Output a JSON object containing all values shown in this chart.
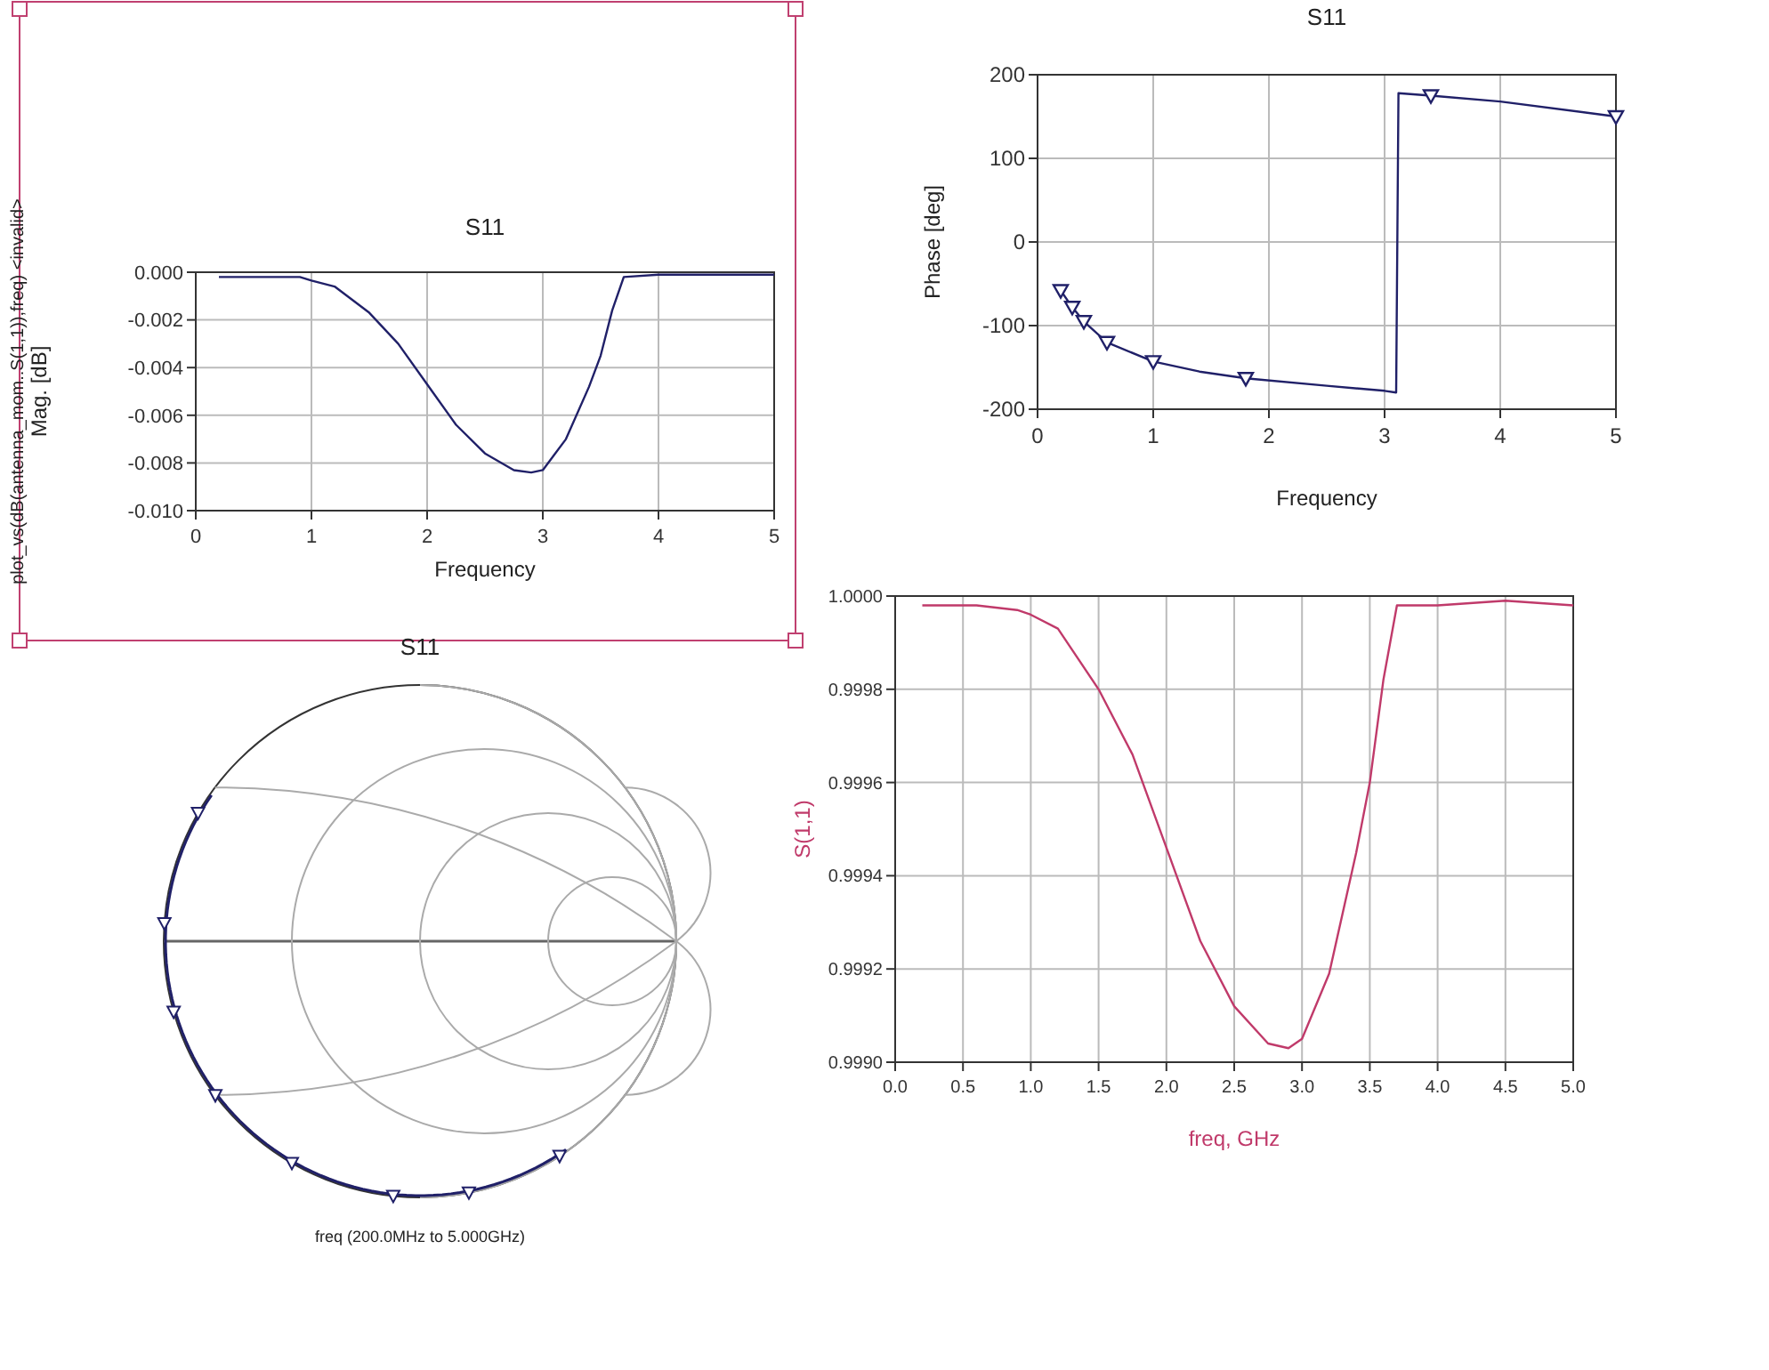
{
  "chart_data": [
    {
      "type": "line",
      "title": "S11",
      "xlabel": "Frequency",
      "ylabel": "Mag. [dB]",
      "annotations": [
        "plot_vs(dB(antenna_mom..S(1,1)),freq) <invalid>"
      ],
      "xlim": [
        0,
        5
      ],
      "ylim": [
        -0.01,
        0
      ],
      "xticks": [
        0,
        1,
        2,
        3,
        4,
        5
      ],
      "yticks": [
        {
          "value": 0,
          "label": "0.000"
        },
        {
          "value": -0.002,
          "label": "-0.002"
        },
        {
          "value": -0.004,
          "label": "-0.004"
        },
        {
          "value": -0.006,
          "label": "-0.006"
        },
        {
          "value": -0.008,
          "label": "-0.008"
        },
        {
          "value": -0.01,
          "label": "-0.010"
        }
      ],
      "grid": true,
      "series": [
        {
          "color": "#202068",
          "x": [
            0.2,
            0.6,
            0.9,
            1.0,
            1.2,
            1.5,
            1.75,
            2.0,
            2.25,
            2.5,
            2.75,
            2.9,
            3.0,
            3.2,
            3.4,
            3.5,
            3.6,
            3.7,
            4.0,
            4.5,
            5.0
          ],
          "values": [
            -0.0002,
            -0.0002,
            -0.0002,
            -0.00035,
            -0.0006,
            -0.0017,
            -0.003,
            -0.0047,
            -0.0064,
            -0.0076,
            -0.0083,
            -0.0084,
            -0.0083,
            -0.007,
            -0.0048,
            -0.0035,
            -0.0016,
            -0.0002,
            -0.0001,
            -0.0001,
            -0.0001
          ]
        }
      ]
    },
    {
      "type": "line",
      "title": "S11",
      "xlabel": "Frequency",
      "ylabel": "Phase [deg]",
      "xlim": [
        0,
        5
      ],
      "ylim": [
        -200,
        200
      ],
      "xticks": [
        0,
        1,
        2,
        3,
        4,
        5
      ],
      "yticks": [
        -200,
        -100,
        0,
        100,
        200
      ],
      "grid": true,
      "series": [
        {
          "color": "#202068",
          "marker": "none",
          "x": [
            0.2,
            0.3,
            0.4,
            0.6,
            1.0,
            1.4,
            1.8,
            2.5,
            3.0,
            3.1,
            3.12,
            3.4,
            4.0,
            5.0
          ],
          "values": [
            -58,
            -78,
            -95,
            -120,
            -143,
            -155,
            -163,
            -172,
            -178,
            -180,
            178,
            175,
            168,
            150
          ]
        },
        {
          "type": "scatter",
          "color": "#202068",
          "marker": "triangle",
          "x": [
            0.2,
            0.3,
            0.4,
            0.6,
            1.0,
            1.8,
            3.4,
            5.0
          ],
          "values": [
            -58,
            -78,
            -95,
            -120,
            -143,
            -163,
            175,
            150
          ]
        }
      ]
    },
    {
      "type": "other",
      "title": "S11",
      "annotations": [
        "freq (200.0MHz to 5.000GHz)"
      ]
    },
    {
      "type": "line",
      "xlabel": "freq, GHz",
      "ylabel": "S(1,1)",
      "xlim": [
        0,
        5
      ],
      "ylim": [
        0.999,
        1
      ],
      "xticks": [
        {
          "value": 0,
          "label": "0.0"
        },
        {
          "value": 0.5,
          "label": "0.5"
        },
        {
          "value": 1,
          "label": "1.0"
        },
        {
          "value": 1.5,
          "label": "1.5"
        },
        {
          "value": 2,
          "label": "2.0"
        },
        {
          "value": 2.5,
          "label": "2.5"
        },
        {
          "value": 3,
          "label": "3.0"
        },
        {
          "value": 3.5,
          "label": "3.5"
        },
        {
          "value": 4,
          "label": "4.0"
        },
        {
          "value": 4.5,
          "label": "4.5"
        },
        {
          "value": 5,
          "label": "5.0"
        }
      ],
      "yticks": [
        {
          "value": 0.999,
          "label": "0.9990"
        },
        {
          "value": 0.9992,
          "label": "0.9992"
        },
        {
          "value": 0.9994,
          "label": "0.9994"
        },
        {
          "value": 0.9996,
          "label": "0.9996"
        },
        {
          "value": 0.9998,
          "label": "0.9998"
        },
        {
          "value": 1,
          "label": "1.0000"
        }
      ],
      "grid": true,
      "series": [
        {
          "color": "#c03a6a",
          "x": [
            0.2,
            0.6,
            0.9,
            1.0,
            1.2,
            1.5,
            1.75,
            2.0,
            2.25,
            2.5,
            2.75,
            2.9,
            3.0,
            3.2,
            3.4,
            3.5,
            3.6,
            3.7,
            4.0,
            4.5,
            5.0
          ],
          "values": [
            0.99998,
            0.99998,
            0.99997,
            0.99996,
            0.99993,
            0.9998,
            0.99966,
            0.99946,
            0.99926,
            0.99912,
            0.99904,
            0.99903,
            0.99905,
            0.99919,
            0.99945,
            0.9996,
            0.99982,
            0.99998,
            0.99998,
            0.99999,
            0.99998
          ]
        }
      ]
    }
  ]
}
